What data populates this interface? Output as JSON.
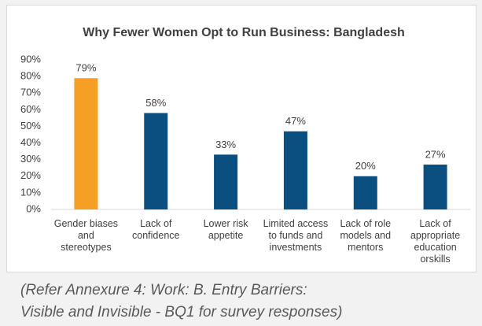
{
  "chart_data": {
    "type": "bar",
    "title": "Why Fewer Women Opt to Run Business: Bangladesh",
    "categories": [
      "Gender biases and stereotypes",
      "Lack of confidence",
      "Lower risk appetite",
      "Limited access to funds and investments",
      "Lack of role models and mentors",
      "Lack of appropriate education orskills"
    ],
    "values": [
      79,
      58,
      33,
      47,
      20,
      27
    ],
    "value_labels": [
      "79%",
      "58%",
      "33%",
      "47%",
      "20%",
      "27%"
    ],
    "colors": [
      "#f5a025",
      "#0b4f80",
      "#0b4f80",
      "#0b4f80",
      "#0b4f80",
      "#0b4f80"
    ],
    "ylim": [
      0,
      90
    ],
    "yticks": [
      {
        "value": 0,
        "label": "0%"
      },
      {
        "value": 10,
        "label": "10%"
      },
      {
        "value": 20,
        "label": "20%"
      },
      {
        "value": 30,
        "label": "30%"
      },
      {
        "value": 40,
        "label": "40%"
      },
      {
        "value": 50,
        "label": "50%"
      },
      {
        "value": 60,
        "label": "60%"
      },
      {
        "value": 70,
        "label": "70%"
      },
      {
        "value": 80,
        "label": "80%"
      },
      {
        "value": 90,
        "label": "90%"
      }
    ],
    "caption": [
      "(Refer Annexure 4: Work: B. Entry Barriers:",
      "Visible and Invisible - BQ1 for survey responses)"
    ]
  }
}
